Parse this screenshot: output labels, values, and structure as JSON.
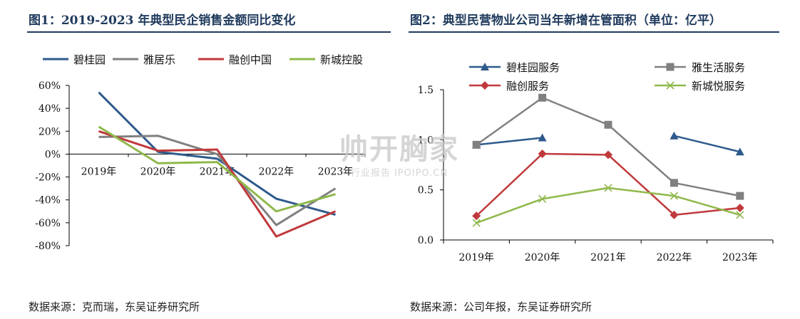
{
  "left": {
    "title": "图1：2019-2023 年典型民企销售金额同比变化",
    "source": "数据来源：克而瑞，东吴证券研究所"
  },
  "right": {
    "title": "图2：典型民营物业公司当年新增在管面积（单位：亿平）",
    "source": "数据来源：公司年报，东吴证券研究所"
  },
  "watermark": {
    "main": "帅开胸家",
    "sub": "行业报告 IPOIPO.CN"
  },
  "chart_data": [
    {
      "type": "line",
      "title": "",
      "categories": [
        "2019年",
        "2020年",
        "2021年",
        "2022年",
        "2023年"
      ],
      "ylim": [
        -0.8,
        0.6
      ],
      "yticks": [
        0.6,
        0.4,
        0.2,
        0.0,
        -0.2,
        -0.4,
        -0.6,
        -0.8
      ],
      "ytick_labels": [
        "60%",
        "40%",
        "20%",
        "0%",
        "-20%",
        "-40%",
        "-60%",
        "-80%"
      ],
      "legend_position": "top",
      "grid": false,
      "series": [
        {
          "name": "碧桂园",
          "color": "#2e5a8c",
          "values": [
            0.54,
            0.02,
            -0.04,
            -0.39,
            -0.53
          ]
        },
        {
          "name": "雅居乐",
          "color": "#808080",
          "values": [
            0.15,
            0.16,
            0.0,
            -0.62,
            -0.3
          ]
        },
        {
          "name": "融创中国",
          "color": "#c0393b",
          "values": [
            0.2,
            0.03,
            0.04,
            -0.72,
            -0.5
          ]
        },
        {
          "name": "新城控股",
          "color": "#8fb84a",
          "values": [
            0.24,
            -0.08,
            -0.07,
            -0.5,
            -0.35
          ]
        }
      ]
    },
    {
      "type": "line",
      "title": "",
      "categories": [
        "2019年",
        "2020年",
        "2021年",
        "2022年",
        "2023年"
      ],
      "ylim": [
        0.0,
        1.5
      ],
      "yticks": [
        0.0,
        0.5,
        1.0,
        1.5
      ],
      "ytick_labels": [
        "0.0",
        "0.5",
        "1.0",
        "1.5"
      ],
      "legend_position": "top",
      "grid": false,
      "series": [
        {
          "name": "碧桂园服务",
          "color": "#2e5a8c",
          "marker": "triangle",
          "values": [
            0.95,
            1.02,
            null,
            1.04,
            0.88
          ]
        },
        {
          "name": "雅生活服务",
          "color": "#808080",
          "marker": "square",
          "values": [
            0.95,
            1.42,
            1.15,
            0.57,
            0.44
          ]
        },
        {
          "name": "融创服务",
          "color": "#c0393b",
          "marker": "diamond",
          "values": [
            0.24,
            0.86,
            0.85,
            0.25,
            0.32
          ]
        },
        {
          "name": "新城悦服务",
          "color": "#8fb84a",
          "marker": "x",
          "values": [
            0.17,
            0.41,
            0.52,
            0.44,
            0.25
          ]
        }
      ]
    }
  ]
}
